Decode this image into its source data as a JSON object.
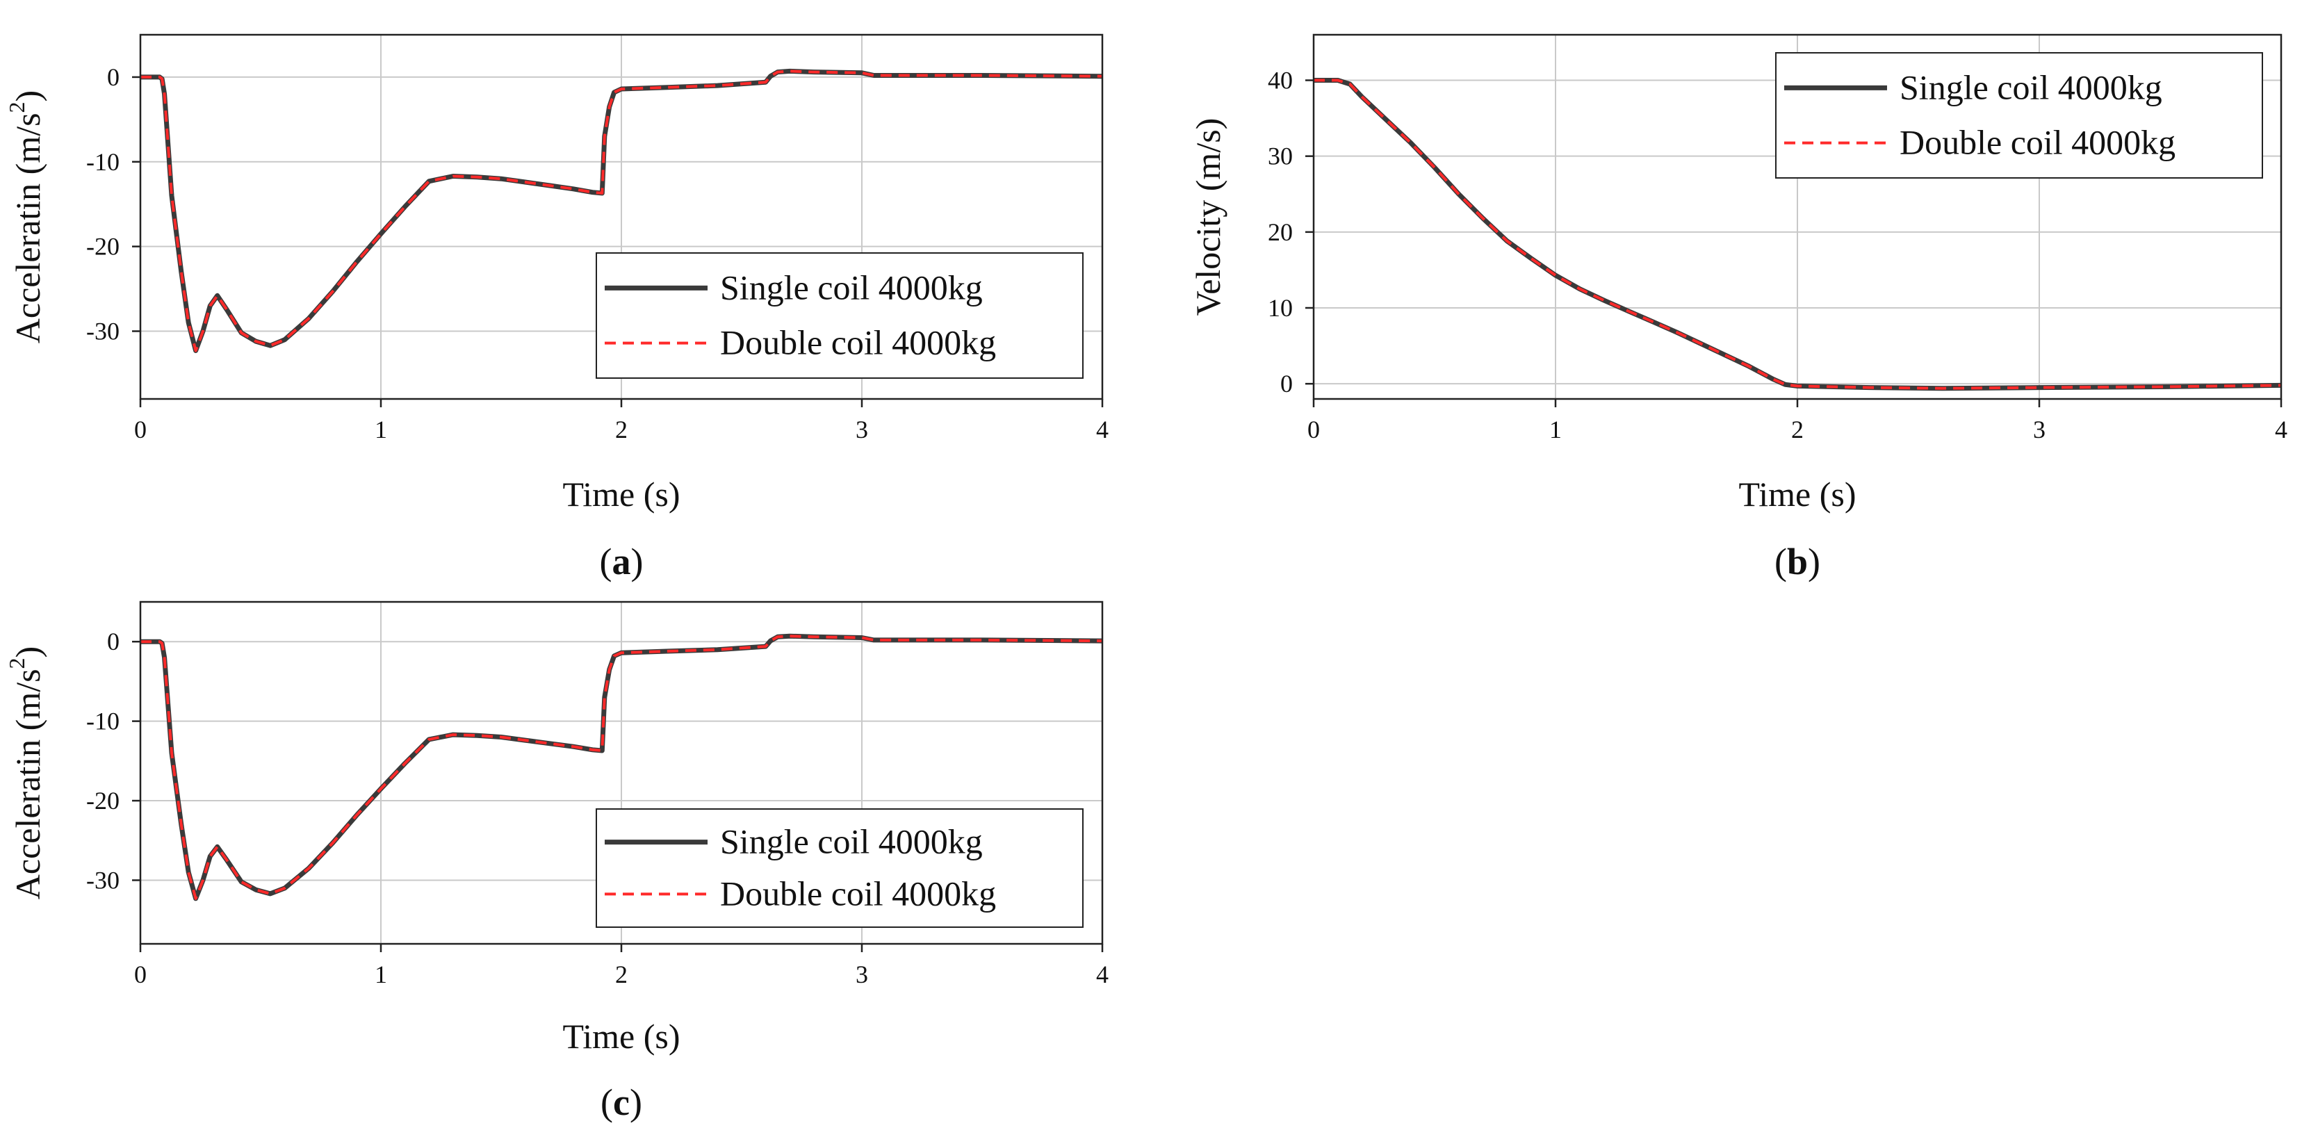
{
  "chart_data": [
    {
      "type": "line",
      "panel_label": "a",
      "xlabel": "Time (s)",
      "ylabel_main": "Acceleratin (m/s",
      "ylabel_sup": "2",
      "ylabel_close": ")",
      "xlim": [
        0,
        4
      ],
      "ylim": [
        -38,
        5
      ],
      "xticks": [
        "0",
        "1",
        "2",
        "3",
        "4"
      ],
      "yticks": [
        "0",
        "-10",
        "-20",
        "-30"
      ],
      "ytick_values": [
        0,
        -10,
        -20,
        -30
      ],
      "xtick_values": [
        0,
        1,
        2,
        3,
        4
      ],
      "grid": true,
      "legend_position": "bottom-right",
      "series": [
        {
          "name": "Single coil 4000kg",
          "color": "#3a3a3a",
          "style": "solid",
          "x": [
            0,
            0.08,
            0.09,
            0.1,
            0.13,
            0.17,
            0.2,
            0.23,
            0.26,
            0.29,
            0.32,
            0.36,
            0.42,
            0.48,
            0.54,
            0.6,
            0.7,
            0.8,
            0.9,
            1.0,
            1.1,
            1.2,
            1.3,
            1.4,
            1.5,
            1.6,
            1.7,
            1.8,
            1.88,
            1.92,
            1.93,
            1.95,
            1.97,
            2.0,
            2.2,
            2.4,
            2.6,
            2.62,
            2.65,
            2.7,
            2.8,
            3.0,
            3.05,
            3.5,
            4.0
          ],
          "y": [
            0,
            0,
            -0.2,
            -2,
            -14,
            -23,
            -29,
            -32.3,
            -30,
            -27,
            -25.8,
            -27.5,
            -30.2,
            -31.2,
            -31.7,
            -31,
            -28.5,
            -25.3,
            -21.8,
            -18.5,
            -15.3,
            -12.3,
            -11.7,
            -11.8,
            -12,
            -12.4,
            -12.8,
            -13.2,
            -13.6,
            -13.7,
            -7,
            -3.5,
            -1.8,
            -1.4,
            -1.2,
            -1,
            -0.6,
            0.1,
            0.6,
            0.7,
            0.6,
            0.5,
            0.2,
            0.2,
            0.1
          ]
        },
        {
          "name": "Double coil 4000kg",
          "color": "#ff2a2a",
          "style": "dashed",
          "x": [
            0,
            0.08,
            0.09,
            0.1,
            0.13,
            0.17,
            0.2,
            0.23,
            0.26,
            0.29,
            0.32,
            0.36,
            0.42,
            0.48,
            0.54,
            0.6,
            0.7,
            0.8,
            0.9,
            1.0,
            1.1,
            1.2,
            1.3,
            1.4,
            1.5,
            1.6,
            1.7,
            1.8,
            1.88,
            1.92,
            1.93,
            1.95,
            1.97,
            2.0,
            2.2,
            2.4,
            2.6,
            2.62,
            2.65,
            2.7,
            2.8,
            3.0,
            3.05,
            3.5,
            4.0
          ],
          "y": [
            0,
            0,
            -0.2,
            -2,
            -14,
            -23,
            -29,
            -32.3,
            -30,
            -27,
            -25.8,
            -27.5,
            -30.2,
            -31.2,
            -31.7,
            -31,
            -28.5,
            -25.3,
            -21.8,
            -18.5,
            -15.3,
            -12.3,
            -11.7,
            -11.8,
            -12,
            -12.4,
            -12.8,
            -13.2,
            -13.6,
            -13.7,
            -7,
            -3.5,
            -1.8,
            -1.4,
            -1.2,
            -1,
            -0.6,
            0.1,
            0.6,
            0.7,
            0.6,
            0.5,
            0.2,
            0.2,
            0.1
          ]
        }
      ]
    },
    {
      "type": "line",
      "panel_label": "b",
      "xlabel": "Time (s)",
      "ylabel_main": "Velocity (m/s)",
      "ylabel_sup": "",
      "ylabel_close": "",
      "xlim": [
        0,
        4
      ],
      "ylim": [
        -2,
        46
      ],
      "xticks": [
        "0",
        "1",
        "2",
        "3",
        "4"
      ],
      "yticks": [
        "0",
        "10",
        "20",
        "30",
        "40"
      ],
      "ytick_values": [
        0,
        10,
        20,
        30,
        40
      ],
      "xtick_values": [
        0,
        1,
        2,
        3,
        4
      ],
      "grid": true,
      "legend_position": "top-right",
      "series": [
        {
          "name": "Single coil 4000kg",
          "color": "#3a3a3a",
          "style": "solid",
          "x": [
            0,
            0.05,
            0.1,
            0.15,
            0.2,
            0.3,
            0.4,
            0.5,
            0.6,
            0.7,
            0.8,
            0.9,
            1.0,
            1.1,
            1.2,
            1.3,
            1.4,
            1.5,
            1.6,
            1.7,
            1.8,
            1.9,
            1.95,
            2.0,
            2.3,
            2.6,
            3.0,
            3.5,
            4.0
          ],
          "y": [
            40,
            40,
            40,
            39.5,
            37.8,
            34.8,
            31.8,
            28.5,
            25,
            21.8,
            18.8,
            16.5,
            14.3,
            12.5,
            11,
            9.6,
            8.2,
            6.8,
            5.3,
            3.8,
            2.3,
            0.6,
            -0.1,
            -0.3,
            -0.5,
            -0.6,
            -0.5,
            -0.4,
            -0.2
          ]
        },
        {
          "name": "Double coil 4000kg",
          "color": "#ff2a2a",
          "style": "dashed",
          "x": [
            0,
            0.05,
            0.1,
            0.15,
            0.2,
            0.3,
            0.4,
            0.5,
            0.6,
            0.7,
            0.8,
            0.9,
            1.0,
            1.1,
            1.2,
            1.3,
            1.4,
            1.5,
            1.6,
            1.7,
            1.8,
            1.9,
            1.95,
            2.0,
            2.3,
            2.6,
            3.0,
            3.5,
            4.0
          ],
          "y": [
            40,
            40,
            40,
            39.5,
            37.8,
            34.8,
            31.8,
            28.5,
            25,
            21.8,
            18.8,
            16.5,
            14.3,
            12.5,
            11,
            9.6,
            8.2,
            6.8,
            5.3,
            3.8,
            2.3,
            0.6,
            -0.1,
            -0.3,
            -0.5,
            -0.6,
            -0.5,
            -0.4,
            -0.2
          ]
        }
      ]
    },
    {
      "type": "line",
      "panel_label": "c",
      "xlabel": "Time (s)",
      "ylabel_main": "Acceleratin (m/s",
      "ylabel_sup": "2",
      "ylabel_close": ")",
      "xlim": [
        0,
        4
      ],
      "ylim": [
        -38,
        5
      ],
      "xticks": [
        "0",
        "1",
        "2",
        "3",
        "4"
      ],
      "yticks": [
        "0",
        "-10",
        "-20",
        "-30"
      ],
      "ytick_values": [
        0,
        -10,
        -20,
        -30
      ],
      "xtick_values": [
        0,
        1,
        2,
        3,
        4
      ],
      "grid": true,
      "legend_position": "bottom-right",
      "series": [
        {
          "name": "Single coil 4000kg",
          "color": "#3a3a3a",
          "style": "solid",
          "x": [
            0,
            0.08,
            0.09,
            0.1,
            0.13,
            0.17,
            0.2,
            0.23,
            0.26,
            0.29,
            0.32,
            0.36,
            0.42,
            0.48,
            0.54,
            0.6,
            0.7,
            0.8,
            0.9,
            1.0,
            1.1,
            1.2,
            1.3,
            1.4,
            1.5,
            1.6,
            1.7,
            1.8,
            1.88,
            1.92,
            1.93,
            1.95,
            1.97,
            2.0,
            2.2,
            2.4,
            2.6,
            2.62,
            2.65,
            2.7,
            2.8,
            3.0,
            3.05,
            3.5,
            4.0
          ],
          "y": [
            0,
            0,
            -0.2,
            -2,
            -14,
            -23,
            -29,
            -32.3,
            -30,
            -27,
            -25.8,
            -27.5,
            -30.2,
            -31.2,
            -31.7,
            -31,
            -28.5,
            -25.3,
            -21.8,
            -18.5,
            -15.3,
            -12.3,
            -11.7,
            -11.8,
            -12,
            -12.4,
            -12.8,
            -13.2,
            -13.6,
            -13.7,
            -7,
            -3.5,
            -1.8,
            -1.4,
            -1.2,
            -1,
            -0.6,
            0.1,
            0.6,
            0.7,
            0.6,
            0.5,
            0.2,
            0.2,
            0.1
          ]
        },
        {
          "name": "Double coil 4000kg",
          "color": "#ff2a2a",
          "style": "dashed",
          "x": [
            0,
            0.08,
            0.09,
            0.1,
            0.13,
            0.17,
            0.2,
            0.23,
            0.26,
            0.29,
            0.32,
            0.36,
            0.42,
            0.48,
            0.54,
            0.6,
            0.7,
            0.8,
            0.9,
            1.0,
            1.1,
            1.2,
            1.3,
            1.4,
            1.5,
            1.6,
            1.7,
            1.8,
            1.88,
            1.92,
            1.93,
            1.95,
            1.97,
            2.0,
            2.2,
            2.4,
            2.6,
            2.62,
            2.65,
            2.7,
            2.8,
            3.0,
            3.05,
            3.5,
            4.0
          ],
          "y": [
            0,
            0,
            -0.2,
            -2,
            -14,
            -23,
            -29,
            -32.3,
            -30,
            -27,
            -25.8,
            -27.5,
            -30.2,
            -31.2,
            -31.7,
            -31,
            -28.5,
            -25.3,
            -21.8,
            -18.5,
            -15.3,
            -12.3,
            -11.7,
            -11.8,
            -12,
            -12.4,
            -12.8,
            -13.2,
            -13.6,
            -13.7,
            -7,
            -3.5,
            -1.8,
            -1.4,
            -1.2,
            -1,
            -0.6,
            0.1,
            0.6,
            0.7,
            0.6,
            0.5,
            0.2,
            0.2,
            0.1
          ]
        }
      ]
    }
  ]
}
